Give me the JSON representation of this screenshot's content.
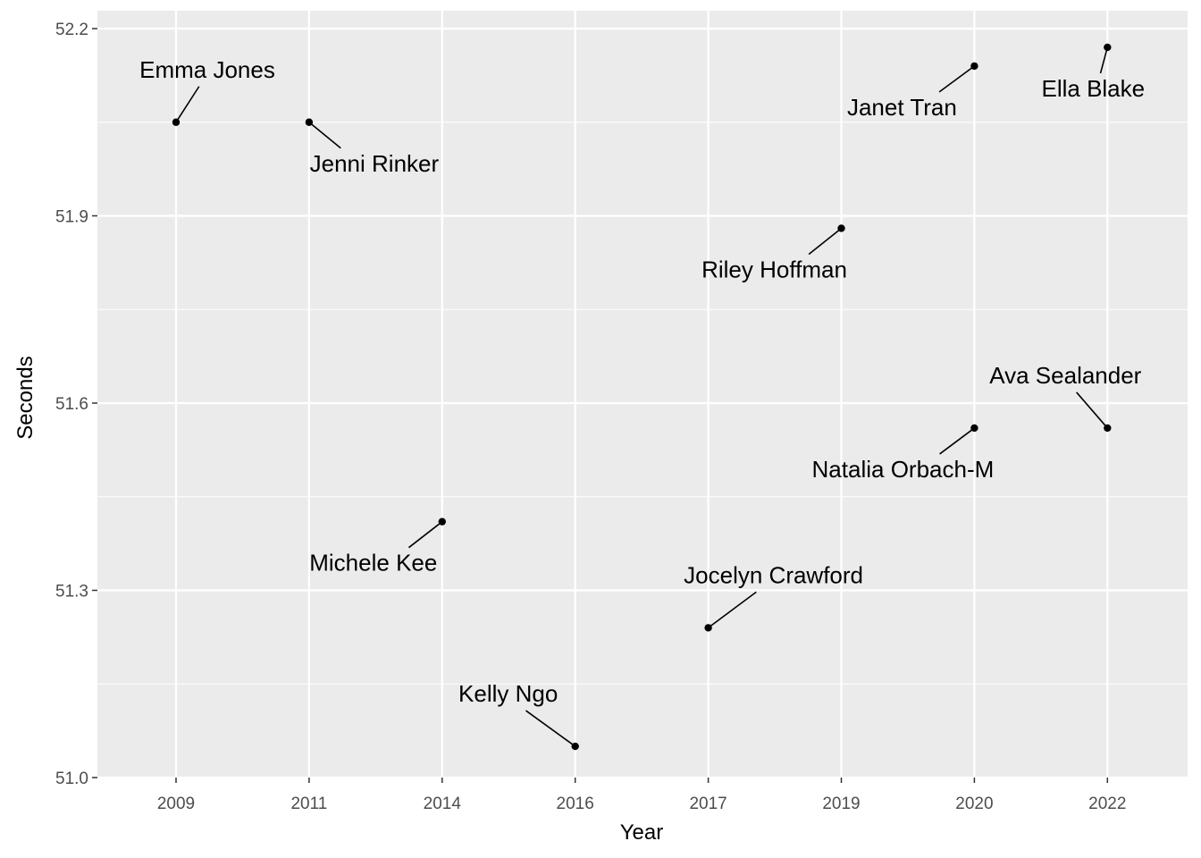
{
  "chart_data": {
    "type": "scatter",
    "title": "",
    "xlabel": "Year",
    "ylabel": "Seconds",
    "x_categories": [
      "2009",
      "2011",
      "2014",
      "2016",
      "2017",
      "2019",
      "2020",
      "2022"
    ],
    "y_ticks": [
      "51.0",
      "51.3",
      "51.6",
      "51.9",
      "52.2"
    ],
    "ylim": [
      51.0,
      52.2
    ],
    "grid": true,
    "points": [
      {
        "x": "2009",
        "y": 52.05,
        "label": "Emma Jones"
      },
      {
        "x": "2011",
        "y": 52.05,
        "label": "Jenni Rinker"
      },
      {
        "x": "2014",
        "y": 51.41,
        "label": "Michele Kee"
      },
      {
        "x": "2016",
        "y": 51.05,
        "label": "Kelly Ngo"
      },
      {
        "x": "2017",
        "y": 51.24,
        "label": "Jocelyn Crawford"
      },
      {
        "x": "2019",
        "y": 51.88,
        "label": "Riley Hoffman"
      },
      {
        "x": "2020",
        "y": 52.14,
        "label": "Janet Tran"
      },
      {
        "x": "2020",
        "y": 51.56,
        "label": "Natalia Orbach-M"
      },
      {
        "x": "2022",
        "y": 52.17,
        "label": "Ella Blake"
      },
      {
        "x": "2022",
        "y": 51.56,
        "label": "Ava Sealander"
      }
    ],
    "colors": {
      "panel": "#ebebeb",
      "grid": "#ffffff",
      "point": "#000000"
    }
  }
}
